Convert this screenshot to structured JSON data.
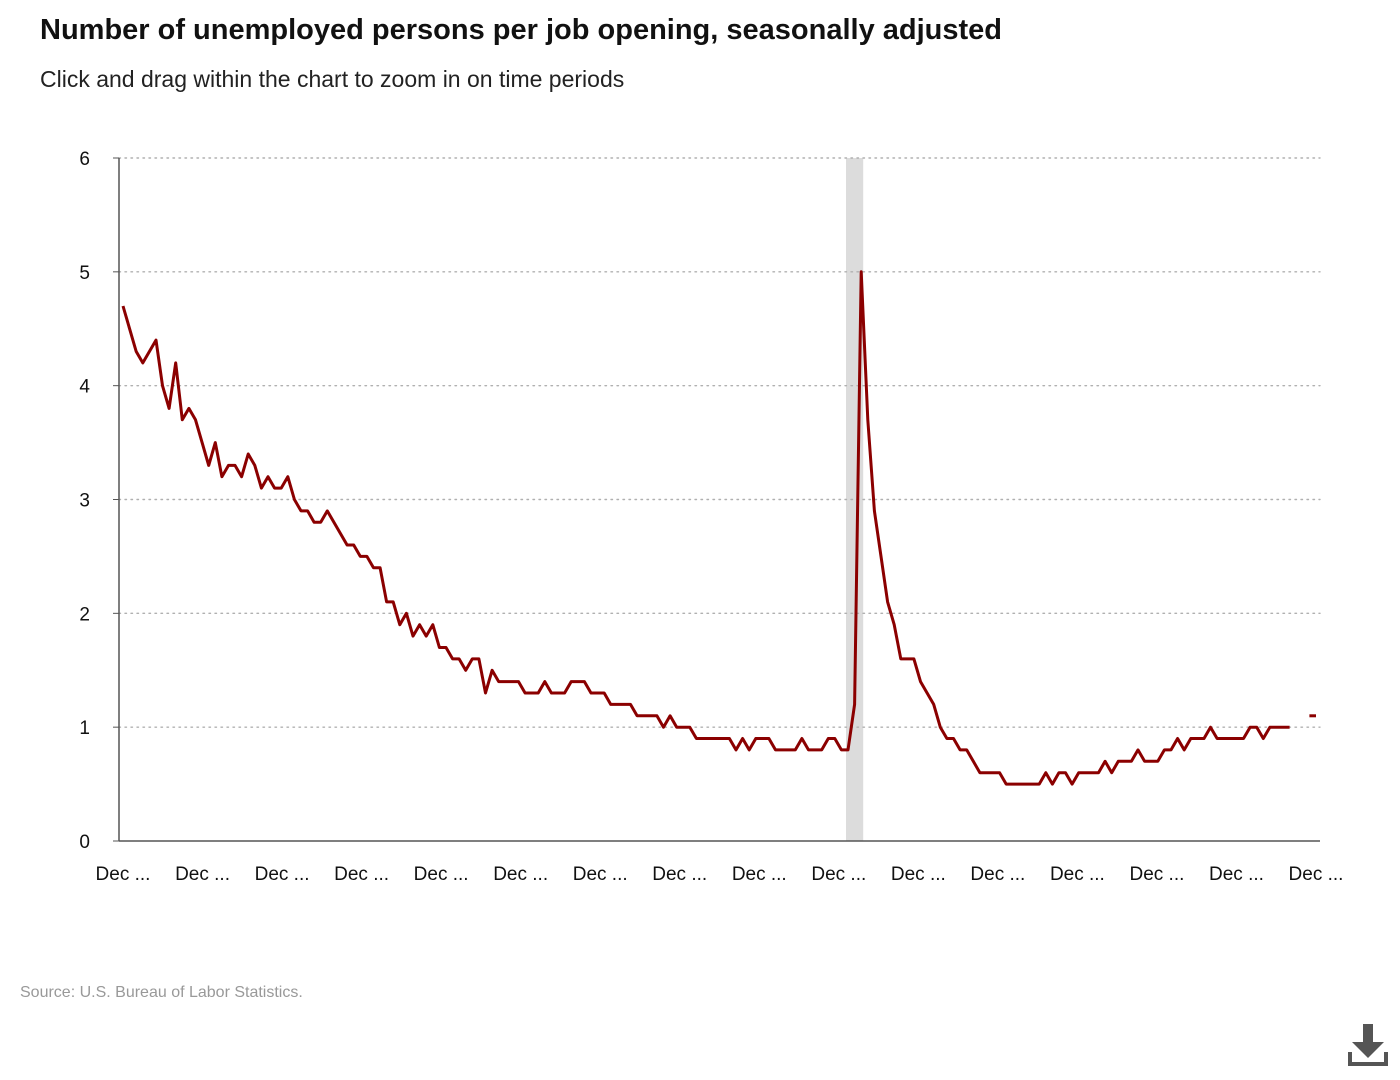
{
  "header": {
    "title": "Number of unemployed persons per job opening, seasonally adjusted",
    "subtitle": "Click and drag within the chart to zoom in on time periods"
  },
  "footer": {
    "source": "Source: U.S. Bureau of Labor Statistics."
  },
  "toolbar": {
    "download_icon": "download-icon"
  },
  "colors": {
    "line": "#8b0000",
    "recession_band": "#dcdcdc",
    "grid": "#b0b0b0",
    "axis": "#555555"
  },
  "chart_data": {
    "type": "line",
    "ylim": [
      0,
      6
    ],
    "y_ticks": [
      0,
      1,
      2,
      3,
      4,
      5,
      6
    ],
    "x_tick_labels": [
      "Dec ...",
      "Dec ...",
      "Dec ...",
      "Dec ...",
      "Dec ...",
      "Dec ...",
      "Dec ...",
      "Dec ...",
      "Dec ...",
      "Dec ...",
      "Dec ...",
      "Dec ...",
      "Dec ...",
      "Dec ...",
      "Dec ...",
      "Dec ..."
    ],
    "grid": "horizontal dotted",
    "shaded_region": {
      "start_index": 110,
      "end_index": 112
    },
    "series": [
      {
        "values": [
          4.7,
          4.5,
          4.3,
          4.2,
          4.3,
          4.4,
          4.0,
          3.8,
          4.2,
          3.7,
          3.8,
          3.7,
          3.5,
          3.3,
          3.5,
          3.2,
          3.3,
          3.3,
          3.2,
          3.4,
          3.3,
          3.1,
          3.2,
          3.1,
          3.1,
          3.2,
          3.0,
          2.9,
          2.9,
          2.8,
          2.8,
          2.9,
          2.8,
          2.7,
          2.6,
          2.6,
          2.5,
          2.5,
          2.4,
          2.4,
          2.1,
          2.1,
          1.9,
          2.0,
          1.8,
          1.9,
          1.8,
          1.9,
          1.7,
          1.7,
          1.6,
          1.6,
          1.5,
          1.6,
          1.6,
          1.3,
          1.5,
          1.4,
          1.4,
          1.4,
          1.4,
          1.3,
          1.3,
          1.3,
          1.4,
          1.3,
          1.3,
          1.3,
          1.4,
          1.4,
          1.4,
          1.3,
          1.3,
          1.3,
          1.2,
          1.2,
          1.2,
          1.2,
          1.1,
          1.1,
          1.1,
          1.1,
          1.0,
          1.1,
          1.0,
          1.0,
          1.0,
          0.9,
          0.9,
          0.9,
          0.9,
          0.9,
          0.9,
          0.8,
          0.9,
          0.8,
          0.9,
          0.9,
          0.9,
          0.8,
          0.8,
          0.8,
          0.8,
          0.9,
          0.8,
          0.8,
          0.8,
          0.9,
          0.9,
          0.8,
          0.8,
          1.2,
          5.0,
          3.7,
          2.9,
          2.5,
          2.1,
          1.9,
          1.6,
          1.6,
          1.6,
          1.4,
          1.3,
          1.2,
          1.0,
          0.9,
          0.9,
          0.8,
          0.8,
          0.7,
          0.6,
          0.6,
          0.6,
          0.6,
          0.5,
          0.5,
          0.5,
          0.5,
          0.5,
          0.5,
          0.6,
          0.5,
          0.6,
          0.6,
          0.5,
          0.6,
          0.6,
          0.6,
          0.6,
          0.7,
          0.6,
          0.7,
          0.7,
          0.7,
          0.8,
          0.7,
          0.7,
          0.7,
          0.8,
          0.8,
          0.9,
          0.8,
          0.9,
          0.9,
          0.9,
          1.0,
          0.9,
          0.9,
          0.9,
          0.9,
          0.9,
          1.0,
          1.0,
          0.9,
          1.0,
          1.0,
          1.0,
          1.0,
          null,
          null,
          1.1,
          1.1
        ]
      }
    ]
  }
}
